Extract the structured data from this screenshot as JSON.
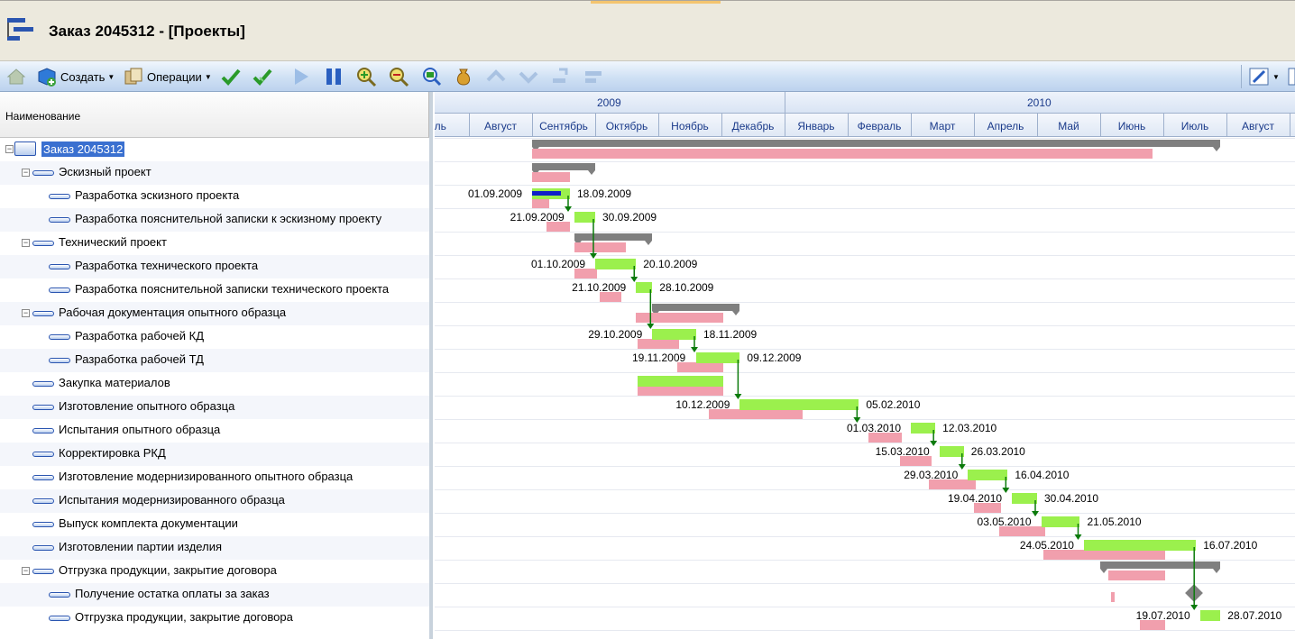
{
  "window": {
    "title": "Заказ 2045312 - [Проекты]"
  },
  "toolbar": {
    "create_label": "Создать",
    "operations_label": "Операции",
    "icons": [
      "home-icon",
      "create-icon",
      "operations-icon",
      "check-icon",
      "double-check-icon",
      "play-icon",
      "pause-icon",
      "zoom-in-icon",
      "zoom-out-icon",
      "zoom-fit-icon",
      "money-bag-icon",
      "arrow-up-icon",
      "arrow-down-icon",
      "indent-icon",
      "outdent-icon",
      "settings-icon",
      "columns-icon"
    ]
  },
  "tree": {
    "column_header": "Наименование",
    "rows": [
      {
        "label": "Заказ 2045312",
        "level": 0,
        "expandable": true,
        "selected": true
      },
      {
        "label": "Эскизный проект",
        "level": 1,
        "expandable": true
      },
      {
        "label": "Разработка эскизного проекта",
        "level": 2
      },
      {
        "label": "Разработка пояснительной записки к эскизному проекту",
        "level": 2
      },
      {
        "label": "Технический проект",
        "level": 1,
        "expandable": true
      },
      {
        "label": "Разработка технического проекта",
        "level": 2
      },
      {
        "label": "Разработка пояснительной записки технического проекта",
        "level": 2
      },
      {
        "label": "Рабочая документация опытного образца",
        "level": 1,
        "expandable": true
      },
      {
        "label": "Разработка рабочей КД",
        "level": 2
      },
      {
        "label": "Разработка рабочей ТД",
        "level": 2
      },
      {
        "label": "Закупка материалов",
        "level": 1
      },
      {
        "label": "Изготовление опытного образца",
        "level": 1
      },
      {
        "label": "Испытания опытного образца",
        "level": 1
      },
      {
        "label": "Корректировка РКД",
        "level": 1
      },
      {
        "label": "Изготовление модернизированного опытного образца",
        "level": 1
      },
      {
        "label": "Испытания модернизированного образца",
        "level": 1
      },
      {
        "label": "Выпуск комплекта документации",
        "level": 1
      },
      {
        "label": "Изготовлении партии изделия",
        "level": 1
      },
      {
        "label": "Отгрузка продукции, закрытие договора",
        "level": 1,
        "expandable": true
      },
      {
        "label": "Получение остатка оплаты за заказ",
        "level": 2
      },
      {
        "label": "Отгрузка продукции, закрытие договора",
        "level": 2
      }
    ]
  },
  "gantt": {
    "years": [
      "2009",
      "2010"
    ],
    "months": [
      "Июль",
      "Август",
      "Сентябрь",
      "Октябрь",
      "Ноябрь",
      "Декабрь",
      "Январь",
      "Февраль",
      "Март",
      "Апрель",
      "Май",
      "Июнь",
      "Июль",
      "Август"
    ],
    "months_visible": [
      "оль",
      "Август",
      "Сентябрь",
      "Октябрь",
      "Ноябрь",
      "Декабрь",
      "Январь",
      "Февраль",
      "Март",
      "Апрель",
      "Май",
      "Июнь",
      "Июль",
      "Август"
    ],
    "tasks": [
      {
        "row": 0,
        "type": "summary",
        "start": "2009-09-01",
        "end": "2010-07-28",
        "baseline": [
          "2009-09-01",
          "2010-06-25"
        ]
      },
      {
        "row": 1,
        "type": "summary",
        "start": "2009-09-01",
        "end": "2009-09-30",
        "baseline": [
          "2009-09-01",
          "2009-09-18"
        ]
      },
      {
        "row": 2,
        "type": "task",
        "start": "2009-09-01",
        "end": "2009-09-18",
        "start_label": "01.09.2009",
        "end_label": "18.09.2009",
        "progress": 0.75,
        "baseline": [
          "2009-09-01",
          "2009-09-08"
        ]
      },
      {
        "row": 3,
        "type": "task",
        "start": "2009-09-21",
        "end": "2009-09-30",
        "start_label": "21.09.2009",
        "end_label": "30.09.2009",
        "baseline": [
          "2009-09-08",
          "2009-09-18"
        ]
      },
      {
        "row": 4,
        "type": "summary",
        "start": "2009-09-21",
        "end": "2009-10-28",
        "baseline": [
          "2009-09-21",
          "2009-10-15"
        ]
      },
      {
        "row": 5,
        "type": "task",
        "start": "2009-10-01",
        "end": "2009-10-20",
        "start_label": "01.10.2009",
        "end_label": "20.10.2009",
        "baseline": [
          "2009-09-21",
          "2009-10-01"
        ]
      },
      {
        "row": 6,
        "type": "task",
        "start": "2009-10-21",
        "end": "2009-10-28",
        "start_label": "21.10.2009",
        "end_label": "28.10.2009",
        "baseline": [
          "2009-10-03",
          "2009-10-13"
        ]
      },
      {
        "row": 7,
        "type": "summary",
        "start": "2009-10-29",
        "end": "2009-12-09",
        "baseline": [
          "2009-10-21",
          "2009-12-01"
        ]
      },
      {
        "row": 8,
        "type": "task",
        "start": "2009-10-29",
        "end": "2009-11-18",
        "start_label": "29.10.2009",
        "end_label": "18.11.2009",
        "baseline": [
          "2009-10-22",
          "2009-11-10"
        ]
      },
      {
        "row": 9,
        "type": "task",
        "start": "2009-11-19",
        "end": "2009-12-09",
        "start_label": "19.11.2009",
        "end_label": "09.12.2009",
        "baseline": [
          "2009-11-10",
          "2009-12-01"
        ]
      },
      {
        "row": 10,
        "type": "task",
        "start": "2009-10-22",
        "end": "2009-12-01",
        "baseline": [
          "2009-10-22",
          "2009-12-01"
        ]
      },
      {
        "row": 11,
        "type": "task",
        "start": "2009-12-10",
        "end": "2010-02-05",
        "start_label": "10.12.2009",
        "end_label": "05.02.2010",
        "baseline": [
          "2009-11-25",
          "2010-01-09"
        ]
      },
      {
        "row": 12,
        "type": "task",
        "start": "2010-03-01",
        "end": "2010-03-12",
        "start_label": "01.03.2010",
        "end_label": "12.03.2010",
        "baseline": [
          "2010-02-10",
          "2010-02-24"
        ]
      },
      {
        "row": 13,
        "type": "task",
        "start": "2010-03-15",
        "end": "2010-03-26",
        "start_label": "15.03.2010",
        "end_label": "26.03.2010",
        "baseline": [
          "2010-02-24",
          "2010-03-10"
        ]
      },
      {
        "row": 14,
        "type": "task",
        "start": "2010-03-29",
        "end": "2010-04-16",
        "start_label": "29.03.2010",
        "end_label": "16.04.2010",
        "baseline": [
          "2010-03-10",
          "2010-04-01"
        ]
      },
      {
        "row": 15,
        "type": "task",
        "start": "2010-04-19",
        "end": "2010-04-30",
        "start_label": "19.04.2010",
        "end_label": "30.04.2010",
        "baseline": [
          "2010-04-01",
          "2010-04-13"
        ]
      },
      {
        "row": 16,
        "type": "task",
        "start": "2010-05-03",
        "end": "2010-05-21",
        "start_label": "03.05.2010",
        "end_label": "21.05.2010",
        "baseline": [
          "2010-04-13",
          "2010-05-04"
        ]
      },
      {
        "row": 17,
        "type": "task",
        "start": "2010-05-24",
        "end": "2010-07-16",
        "start_label": "24.05.2010",
        "end_label": "16.07.2010",
        "baseline": [
          "2010-05-04",
          "2010-07-01"
        ]
      },
      {
        "row": 18,
        "type": "summary",
        "start": "2010-06-01",
        "end": "2010-07-28",
        "baseline": [
          "2010-06-05",
          "2010-07-01"
        ]
      },
      {
        "row": 19,
        "type": "milestone",
        "start": "2010-07-16",
        "end": "2010-07-16",
        "baseline": [
          "2010-06-06",
          "2010-06-07"
        ]
      },
      {
        "row": 20,
        "type": "task",
        "start": "2010-07-19",
        "end": "2010-07-28",
        "start_label": "19.07.2010",
        "end_label": "28.07.2010",
        "baseline": [
          "2010-06-20",
          "2010-07-01"
        ]
      }
    ],
    "links": [
      [
        2,
        3
      ],
      [
        3,
        5
      ],
      [
        5,
        6
      ],
      [
        6,
        8
      ],
      [
        8,
        9
      ],
      [
        9,
        11
      ],
      [
        11,
        12
      ],
      [
        12,
        13
      ],
      [
        13,
        14
      ],
      [
        14,
        15
      ],
      [
        15,
        16
      ],
      [
        16,
        17
      ],
      [
        17,
        20
      ]
    ]
  },
  "colors": {
    "summary": "#7f7f7f",
    "baseline": "#f19fad",
    "task": "#9bf04d",
    "progress": "#1020c8",
    "link": "#0b7a0b",
    "milestone": "#7f7f7f",
    "selection": "#3a70d0"
  }
}
